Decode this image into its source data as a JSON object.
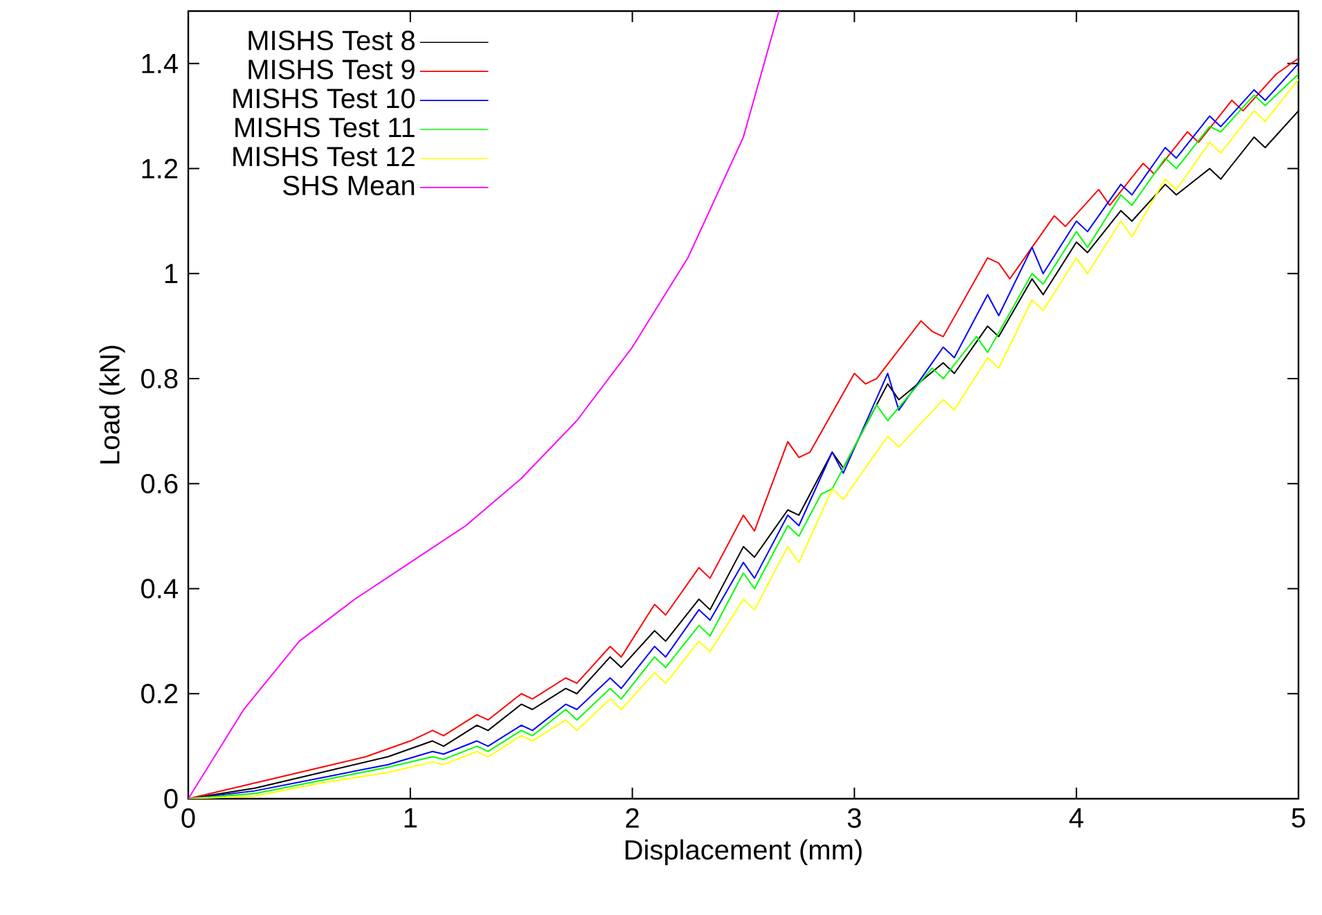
{
  "chart_data": {
    "type": "line",
    "xlabel": "Displacement (mm)",
    "ylabel": "Load (kN)",
    "xlim": [
      0,
      5
    ],
    "ylim": [
      0,
      1.5
    ],
    "xticks": [
      0,
      1,
      2,
      3,
      4,
      5
    ],
    "yticks": [
      0,
      0.2,
      0.4,
      0.6,
      0.8,
      1,
      1.2,
      1.4
    ],
    "grid": false,
    "legend": "top left",
    "line_style": "solid",
    "marker": "none",
    "series": [
      {
        "name": "MISHS Test 8",
        "color": "#000000",
        "x": [
          0,
          0.3,
          0.6,
          0.9,
          1.1,
          1.15,
          1.3,
          1.35,
          1.5,
          1.55,
          1.7,
          1.75,
          1.9,
          1.95,
          2.1,
          2.15,
          2.3,
          2.35,
          2.5,
          2.55,
          2.7,
          2.75,
          2.9,
          2.95,
          3.15,
          3.2,
          3.4,
          3.45,
          3.6,
          3.65,
          3.8,
          3.85,
          4.0,
          4.05,
          4.2,
          4.25,
          4.4,
          4.45,
          4.6,
          4.65,
          4.8,
          4.85,
          5.0
        ],
        "values": [
          0,
          0.02,
          0.05,
          0.08,
          0.11,
          0.1,
          0.14,
          0.13,
          0.18,
          0.17,
          0.21,
          0.2,
          0.27,
          0.25,
          0.32,
          0.3,
          0.38,
          0.36,
          0.48,
          0.46,
          0.55,
          0.54,
          0.66,
          0.63,
          0.79,
          0.76,
          0.83,
          0.81,
          0.9,
          0.88,
          0.99,
          0.96,
          1.06,
          1.04,
          1.12,
          1.1,
          1.17,
          1.15,
          1.2,
          1.18,
          1.26,
          1.24,
          1.31
        ]
      },
      {
        "name": "MISHS Test 9",
        "color": "#ff0000",
        "x": [
          0,
          0.3,
          0.6,
          0.8,
          1.0,
          1.1,
          1.15,
          1.3,
          1.35,
          1.5,
          1.55,
          1.7,
          1.75,
          1.9,
          1.95,
          2.1,
          2.15,
          2.3,
          2.35,
          2.5,
          2.55,
          2.7,
          2.75,
          2.8,
          3.0,
          3.05,
          3.1,
          3.3,
          3.35,
          3.4,
          3.6,
          3.65,
          3.7,
          3.9,
          3.95,
          4.1,
          4.15,
          4.3,
          4.35,
          4.5,
          4.55,
          4.7,
          4.75,
          4.9,
          5.0
        ],
        "values": [
          0,
          0.03,
          0.06,
          0.08,
          0.11,
          0.13,
          0.12,
          0.16,
          0.15,
          0.2,
          0.19,
          0.23,
          0.22,
          0.29,
          0.27,
          0.37,
          0.35,
          0.44,
          0.42,
          0.54,
          0.51,
          0.68,
          0.65,
          0.66,
          0.81,
          0.79,
          0.8,
          0.91,
          0.89,
          0.88,
          1.03,
          1.02,
          0.99,
          1.11,
          1.09,
          1.16,
          1.13,
          1.21,
          1.19,
          1.27,
          1.25,
          1.33,
          1.31,
          1.38,
          1.41
        ]
      },
      {
        "name": "MISHS Test 10",
        "color": "#0000ff",
        "x": [
          0,
          0.3,
          0.6,
          0.9,
          1.1,
          1.15,
          1.3,
          1.35,
          1.5,
          1.55,
          1.7,
          1.75,
          1.9,
          1.95,
          2.1,
          2.15,
          2.3,
          2.35,
          2.5,
          2.55,
          2.7,
          2.75,
          2.9,
          2.95,
          3.15,
          3.2,
          3.4,
          3.45,
          3.6,
          3.65,
          3.8,
          3.85,
          4.0,
          4.05,
          4.2,
          4.25,
          4.4,
          4.45,
          4.6,
          4.65,
          4.8,
          4.85,
          5.0
        ],
        "values": [
          0,
          0.015,
          0.04,
          0.065,
          0.09,
          0.085,
          0.11,
          0.1,
          0.14,
          0.13,
          0.18,
          0.17,
          0.23,
          0.21,
          0.29,
          0.27,
          0.36,
          0.34,
          0.45,
          0.42,
          0.54,
          0.52,
          0.66,
          0.62,
          0.81,
          0.74,
          0.86,
          0.84,
          0.96,
          0.92,
          1.05,
          1.0,
          1.1,
          1.08,
          1.17,
          1.15,
          1.24,
          1.22,
          1.3,
          1.28,
          1.35,
          1.33,
          1.4
        ]
      },
      {
        "name": "MISHS Test 11",
        "color": "#00ff00",
        "x": [
          0,
          0.3,
          0.6,
          0.9,
          1.1,
          1.15,
          1.3,
          1.35,
          1.5,
          1.55,
          1.7,
          1.75,
          1.9,
          1.95,
          2.1,
          2.15,
          2.3,
          2.35,
          2.5,
          2.55,
          2.7,
          2.75,
          2.85,
          2.9,
          3.1,
          3.15,
          3.35,
          3.4,
          3.55,
          3.6,
          3.8,
          3.85,
          4.0,
          4.05,
          4.2,
          4.25,
          4.4,
          4.45,
          4.6,
          4.65,
          4.8,
          4.85,
          5.0
        ],
        "values": [
          0,
          0.01,
          0.035,
          0.06,
          0.08,
          0.075,
          0.1,
          0.09,
          0.13,
          0.12,
          0.17,
          0.15,
          0.21,
          0.19,
          0.27,
          0.25,
          0.33,
          0.31,
          0.43,
          0.4,
          0.52,
          0.5,
          0.58,
          0.59,
          0.75,
          0.72,
          0.82,
          0.8,
          0.88,
          0.85,
          1.0,
          0.98,
          1.08,
          1.05,
          1.15,
          1.13,
          1.22,
          1.2,
          1.28,
          1.27,
          1.34,
          1.32,
          1.38
        ]
      },
      {
        "name": "MISHS Test 12",
        "color": "#ffff00",
        "x": [
          0,
          0.3,
          0.6,
          0.9,
          1.1,
          1.15,
          1.3,
          1.35,
          1.5,
          1.55,
          1.7,
          1.75,
          1.9,
          1.95,
          2.1,
          2.15,
          2.3,
          2.35,
          2.5,
          2.55,
          2.7,
          2.75,
          2.9,
          2.95,
          3.15,
          3.2,
          3.4,
          3.45,
          3.6,
          3.65,
          3.8,
          3.85,
          4.0,
          4.05,
          4.2,
          4.25,
          4.4,
          4.45,
          4.6,
          4.65,
          4.8,
          4.85,
          5.0
        ],
        "values": [
          0,
          0.005,
          0.03,
          0.05,
          0.07,
          0.065,
          0.09,
          0.08,
          0.12,
          0.11,
          0.15,
          0.13,
          0.19,
          0.17,
          0.24,
          0.22,
          0.3,
          0.28,
          0.38,
          0.36,
          0.48,
          0.45,
          0.59,
          0.57,
          0.69,
          0.67,
          0.76,
          0.74,
          0.84,
          0.82,
          0.95,
          0.93,
          1.03,
          1.0,
          1.1,
          1.07,
          1.18,
          1.16,
          1.25,
          1.23,
          1.31,
          1.29,
          1.37
        ]
      },
      {
        "name": "SHS Mean",
        "color": "#ff00ff",
        "x": [
          0,
          0.25,
          0.5,
          0.75,
          1.0,
          1.25,
          1.5,
          1.75,
          2.0,
          2.25,
          2.5,
          2.66
        ],
        "values": [
          0,
          0.17,
          0.3,
          0.38,
          0.45,
          0.52,
          0.61,
          0.72,
          0.86,
          1.03,
          1.26,
          1.5
        ]
      }
    ]
  }
}
